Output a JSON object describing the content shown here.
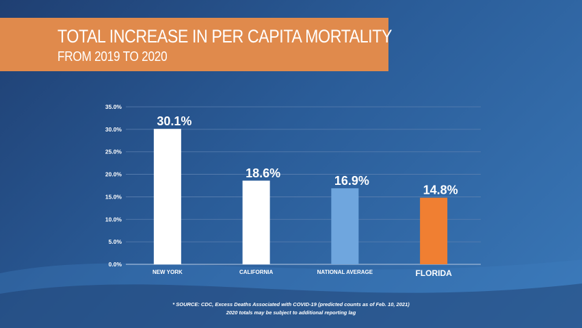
{
  "banner": {
    "title": "TOTAL INCREASE IN PER CAPITA MORTALITY",
    "subtitle": "FROM 2019 TO 2020",
    "color": "#e08a4c"
  },
  "chart_data": {
    "type": "bar",
    "categories": [
      "NEW YORK",
      "CALIFORNIA",
      "NATIONAL AVERAGE",
      "FLORIDA"
    ],
    "values": [
      30.1,
      18.6,
      16.9,
      14.8
    ],
    "value_labels": [
      "30.1%",
      "18.6%",
      "16.9%",
      "14.8%"
    ],
    "bar_colors": [
      "#ffffff",
      "#ffffff",
      "#6fa6de",
      "#f07f32"
    ],
    "ylim": [
      0,
      35
    ],
    "yticks": [
      0,
      5,
      10,
      15,
      20,
      25,
      30,
      35
    ],
    "ytick_labels": [
      "0.0%",
      "5.0%",
      "10.0%",
      "15.0%",
      "20.0%",
      "25.0%",
      "30.0%",
      "35.0%"
    ],
    "grid": true,
    "title": "TOTAL INCREASE IN PER CAPITA MORTALITY",
    "xlabel": "",
    "ylabel": ""
  },
  "footer": {
    "source_line": "* SOURCE: CDC, Excess Deaths Associated with COVID-19 (predicted counts as of Feb. 10, 2021)",
    "note_line": "2020 totals may be subject to additional reporting lag"
  }
}
